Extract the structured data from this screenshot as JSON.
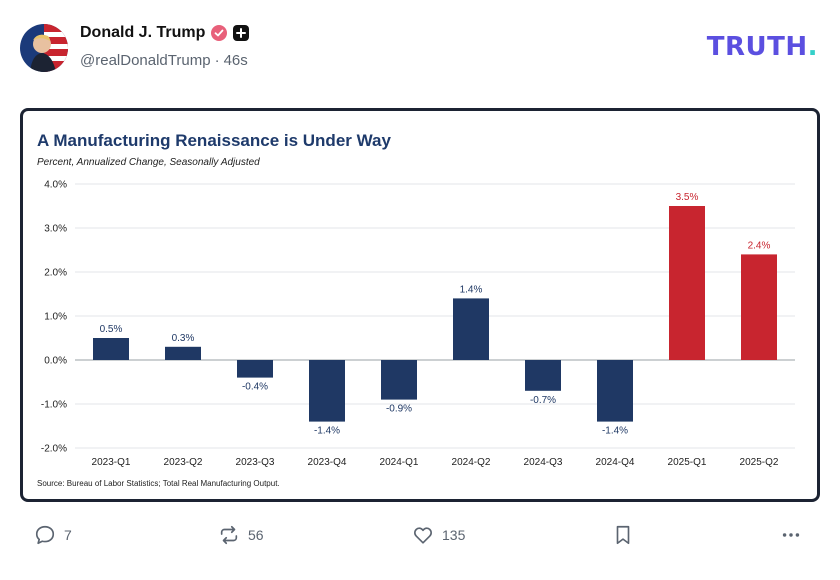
{
  "post": {
    "author_name": "Donald J. Trump",
    "handle": "@realDonaldTrump",
    "separator": "·",
    "time": "46s",
    "logo_text": "TRUTH",
    "logo_dot": "."
  },
  "actions": {
    "replies": "7",
    "retruths": "56",
    "likes": "135"
  },
  "colors": {
    "navy": "#1f3864",
    "red": "#c8252f",
    "logo_purple": "#5b4fe0",
    "logo_teal": "#34d0c9"
  },
  "chart_data": {
    "type": "bar",
    "title": "A Manufacturing Renaissance is Under Way",
    "subtitle": "Percent, Annualized Change, Seasonally Adjusted",
    "source": "Source: Bureau of Labor Statistics; Total Real Manufacturing Output.",
    "categories": [
      "2023-Q1",
      "2023-Q2",
      "2023-Q3",
      "2023-Q4",
      "2024-Q1",
      "2024-Q2",
      "2024-Q3",
      "2024-Q4",
      "2025-Q1",
      "2025-Q2"
    ],
    "values": [
      0.5,
      0.3,
      -0.4,
      -1.4,
      -0.9,
      1.4,
      -0.7,
      -1.4,
      3.5,
      2.4
    ],
    "labels": [
      "0.5%",
      "0.3%",
      "-0.4%",
      "-1.4%",
      "-0.9%",
      "1.4%",
      "-0.7%",
      "-1.4%",
      "3.5%",
      "2.4%"
    ],
    "bar_colors": [
      "#1f3864",
      "#1f3864",
      "#1f3864",
      "#1f3864",
      "#1f3864",
      "#1f3864",
      "#1f3864",
      "#1f3864",
      "#c8252f",
      "#c8252f"
    ],
    "ylim": [
      -2.0,
      4.0
    ],
    "yticks": [
      4.0,
      3.0,
      2.0,
      1.0,
      0.0,
      -1.0,
      -2.0
    ],
    "ytick_labels": [
      "4.0%",
      "3.0%",
      "2.0%",
      "1.0%",
      "0.0%",
      "-1.0%",
      "-2.0%"
    ],
    "grid": true
  }
}
